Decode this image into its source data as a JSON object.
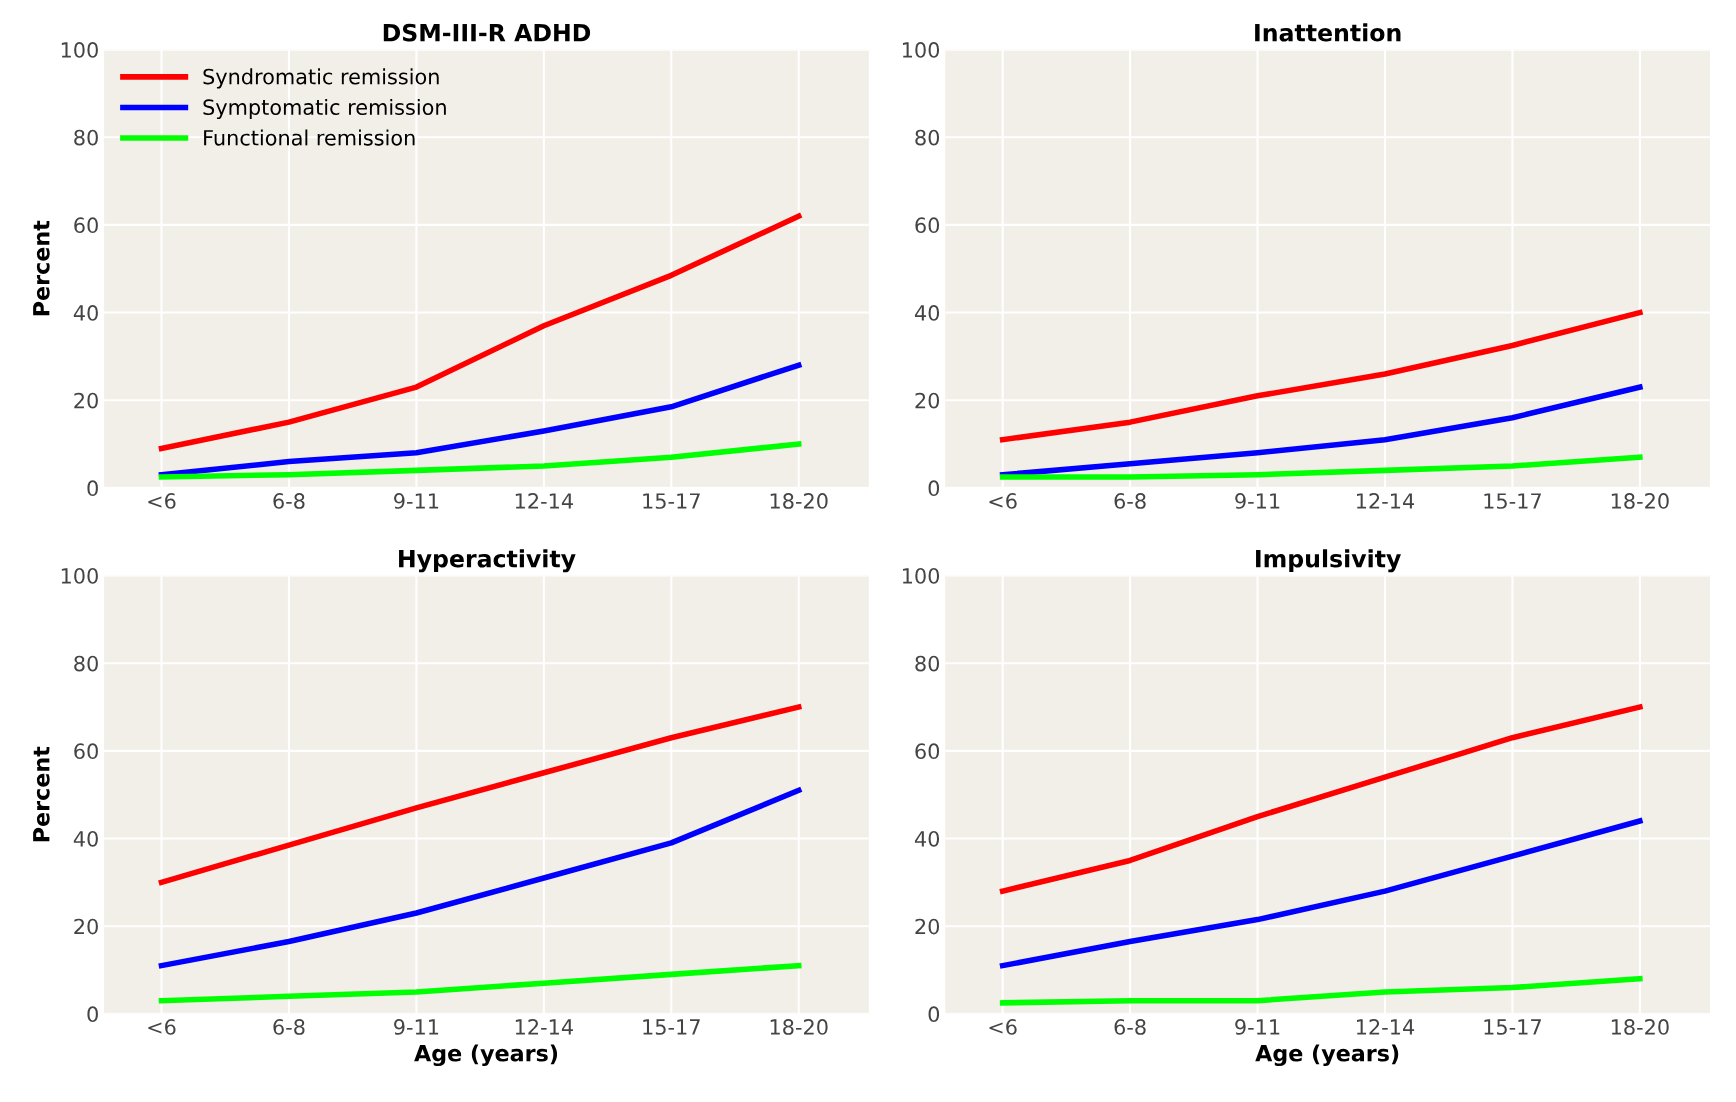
{
  "chart_data": [
    {
      "type": "line",
      "title": "DSM-III-R ADHD",
      "ylabel": "Percent",
      "categories": [
        "<6",
        "6-8",
        "9-11",
        "12-14",
        "15-17",
        "18-20"
      ],
      "ylim": [
        0,
        100
      ],
      "yticks": [
        0,
        20,
        40,
        60,
        80,
        100
      ],
      "grid": true,
      "legend": "top left",
      "marker": "none",
      "line_style": "solid",
      "series": [
        {
          "name": "Syndromatic remission",
          "color": "#ff0000",
          "values": [
            9,
            15,
            23,
            37,
            48.5,
            62
          ]
        },
        {
          "name": "Symptomatic remission",
          "color": "#0000ff",
          "values": [
            3,
            6,
            8,
            13,
            18.5,
            28
          ]
        },
        {
          "name": "Functional remission",
          "color": "#00ff00",
          "values": [
            2.5,
            3,
            4,
            5,
            7,
            10
          ]
        }
      ]
    },
    {
      "type": "line",
      "title": "Inattention",
      "categories": [
        "<6",
        "6-8",
        "9-11",
        "12-14",
        "15-17",
        "18-20"
      ],
      "ylim": [
        0,
        100
      ],
      "yticks": [
        0,
        20,
        40,
        60,
        80,
        100
      ],
      "grid": true,
      "marker": "none",
      "line_style": "solid",
      "series": [
        {
          "color": "#ff0000",
          "values": [
            11,
            15,
            21,
            26,
            32.5,
            40
          ]
        },
        {
          "color": "#0000ff",
          "values": [
            3,
            5.5,
            8,
            11,
            16,
            23
          ]
        },
        {
          "color": "#00ff00",
          "values": [
            2.5,
            2.5,
            3,
            4,
            5,
            7
          ]
        }
      ]
    },
    {
      "type": "line",
      "title": "Hyperactivity",
      "ylabel": "Percent",
      "xlabel": "Age (years)",
      "categories": [
        "<6",
        "6-8",
        "9-11",
        "12-14",
        "15-17",
        "18-20"
      ],
      "ylim": [
        0,
        100
      ],
      "yticks": [
        0,
        20,
        40,
        60,
        80,
        100
      ],
      "grid": true,
      "marker": "none",
      "line_style": "solid",
      "series": [
        {
          "color": "#ff0000",
          "values": [
            30,
            38.5,
            47,
            55,
            63,
            70
          ]
        },
        {
          "color": "#0000ff",
          "values": [
            11,
            16.5,
            23,
            31,
            39,
            51
          ]
        },
        {
          "color": "#00ff00",
          "values": [
            3,
            4,
            5,
            7,
            9,
            11
          ]
        }
      ]
    },
    {
      "type": "line",
      "title": "Impulsivity",
      "xlabel": "Age (years)",
      "categories": [
        "<6",
        "6-8",
        "9-11",
        "12-14",
        "15-17",
        "18-20"
      ],
      "ylim": [
        0,
        100
      ],
      "yticks": [
        0,
        20,
        40,
        60,
        80,
        100
      ],
      "grid": true,
      "marker": "none",
      "line_style": "solid",
      "series": [
        {
          "color": "#ff0000",
          "values": [
            28,
            35,
            45,
            54,
            63,
            70
          ]
        },
        {
          "color": "#0000ff",
          "values": [
            11,
            16.5,
            21.5,
            28,
            36,
            44
          ]
        },
        {
          "color": "#00ff00",
          "values": [
            2.5,
            3,
            3,
            5,
            6,
            8
          ]
        }
      ]
    }
  ]
}
